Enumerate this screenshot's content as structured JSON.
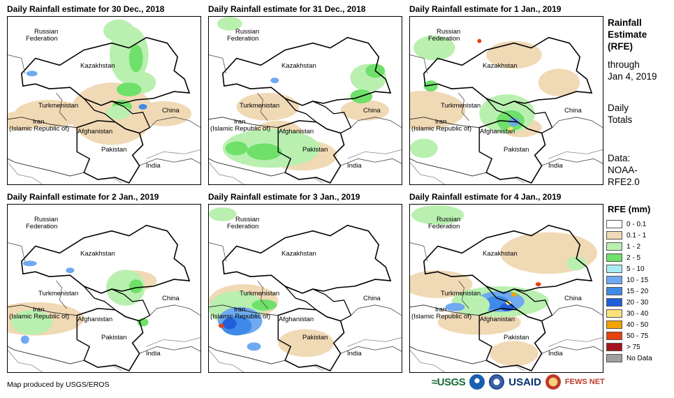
{
  "panels": [
    {
      "title": "Daily Rainfall estimate for 30 Dec., 2018"
    },
    {
      "title": "Daily Rainfall estimate for 31 Dec., 2018"
    },
    {
      "title": "Daily Rainfall estimate for 1 Jan., 2019"
    },
    {
      "title": "Daily Rainfall estimate for 2 Jan., 2019"
    },
    {
      "title": "Daily Rainfall estimate for 3 Jan., 2019"
    },
    {
      "title": "Daily Rainfall estimate for 4 Jan., 2019"
    }
  ],
  "countries": {
    "russia_line1": "Russian",
    "russia_line2": "Federation",
    "kazakhstan": "Kazakhstan",
    "turkmenistan": "Turkmenistan",
    "iran_line1": "Iran",
    "iran_line2": "(Islamic Republic of)",
    "afghanistan": "Afghanistan",
    "pakistan": "Pakistan",
    "china": "China",
    "india": "India"
  },
  "side": {
    "title_line1": "Rainfall",
    "title_line2": "Estimate",
    "title_line3": "(RFE)",
    "through_line1": "through",
    "through_line2": "Jan 4, 2019",
    "daily_line1": "Daily",
    "daily_line2": "Totals",
    "data_line1": "Data:",
    "data_line2": "NOAA-",
    "data_line3": "RFE2.0"
  },
  "legend": {
    "title": "RFE (mm)",
    "items": [
      {
        "label": "0 - 0.1",
        "color": "#ffffff"
      },
      {
        "label": "0.1 - 1",
        "color": "#f0d9b5"
      },
      {
        "label": "1 - 2",
        "color": "#b9f0b0"
      },
      {
        "label": "2 - 5",
        "color": "#6fe06a"
      },
      {
        "label": "5 - 10",
        "color": "#a8ecf3"
      },
      {
        "label": "10 - 15",
        "color": "#6fa9ef"
      },
      {
        "label": "15 - 20",
        "color": "#3f8ae8"
      },
      {
        "label": "20 - 30",
        "color": "#1f5fdc"
      },
      {
        "label": "30 - 40",
        "color": "#fbe27d"
      },
      {
        "label": "40 - 50",
        "color": "#f5a300"
      },
      {
        "label": "50 - 75",
        "color": "#e8410f"
      },
      {
        "label": "> 75",
        "color": "#a5141c"
      },
      {
        "label": "No Data",
        "color": "#a0a0a0"
      }
    ]
  },
  "footer": {
    "credit": "Map produced by USGS/EROS",
    "logo_usgs": "≈USGS",
    "logo_usaid": "USAID",
    "logo_fews": "FEWS NET"
  }
}
